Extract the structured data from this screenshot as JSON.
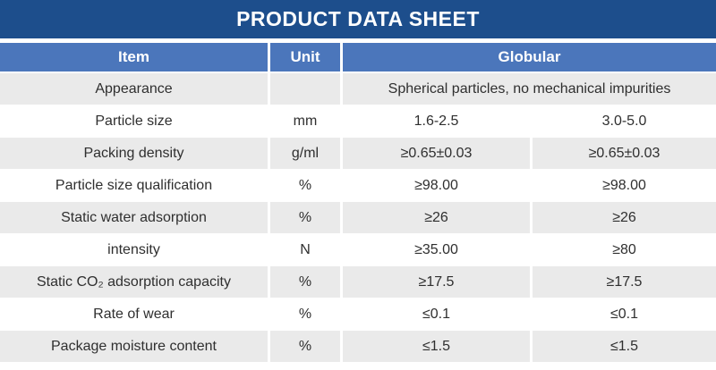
{
  "title": "PRODUCT DATA SHEET",
  "colors": {
    "title_bar": "#1d4e8c",
    "header_row": "#4b76bb",
    "row_alt": "#eaeaea",
    "text": "#2f2f2f"
  },
  "table": {
    "headers": {
      "item": "Item",
      "unit": "Unit",
      "product": "Globular"
    },
    "rows": [
      {
        "item": "Appearance",
        "unit": "",
        "values": [
          "Spherical particles, no mechanical impurities"
        ]
      },
      {
        "item": "Particle size",
        "unit": "mm",
        "values": [
          "1.6-2.5",
          "3.0-5.0"
        ]
      },
      {
        "item": "Packing density",
        "unit": "g/ml",
        "values": [
          "≥0.65±0.03",
          "≥0.65±0.03"
        ]
      },
      {
        "item": "Particle size qualification",
        "unit": "%",
        "values": [
          "≥98.00",
          "≥98.00"
        ]
      },
      {
        "item": "Static water adsorption",
        "unit": "%",
        "values": [
          "≥26",
          "≥26"
        ]
      },
      {
        "item": "intensity",
        "unit": "N",
        "values": [
          "≥35.00",
          "≥80"
        ]
      },
      {
        "item": "Static CO₂ adsorption capacity",
        "unit": "%",
        "values": [
          "≥17.5",
          "≥17.5"
        ]
      },
      {
        "item": "Rate of wear",
        "unit": "%",
        "values": [
          "≤0.1",
          "≤0.1"
        ]
      },
      {
        "item": "Package moisture content",
        "unit": "%",
        "values": [
          "≤1.5",
          "≤1.5"
        ]
      }
    ]
  }
}
